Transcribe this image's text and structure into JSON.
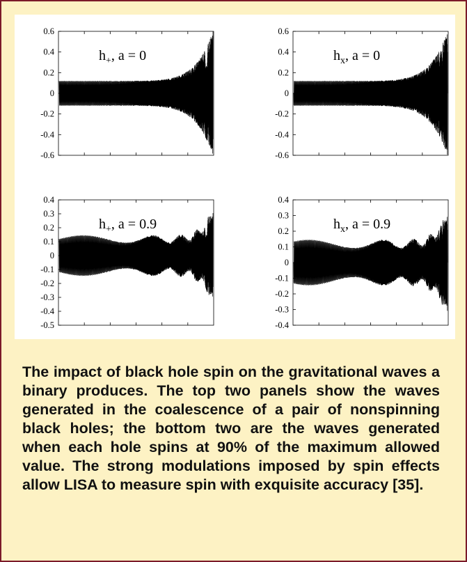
{
  "caption": "The impact of black hole spin on the gravita­tional waves a binary produces.  The top two panels show the waves generated in the coa­lescence of a pair of nonspinning black holes; the bottom two are the waves generated when each hole spins at 90% of the maximum allowed value.  The strong modulations imposed by spin effects allow LISA to measure spin with exqui­site accuracy [35].",
  "colors": {
    "frame_border": "#7b1a2a",
    "background": "#fdf2c4",
    "waveform": "#000000"
  },
  "chart_data": [
    {
      "type": "line",
      "label_main": "h",
      "label_sub": "+",
      "label_tail": ", a = 0",
      "ylim": [
        -0.6,
        0.6
      ],
      "yticks": [
        "0.6",
        "0.4",
        "0.2",
        "0",
        "-0.2",
        "-0.4",
        "-0.6"
      ],
      "envelope": {
        "start_amplitude": 0.12,
        "end_amplitude": 0.6,
        "spin_modulation": 0
      }
    },
    {
      "type": "line",
      "label_main": "h",
      "label_sub": "x",
      "label_tail": ", a = 0",
      "ylim": [
        -0.6,
        0.6
      ],
      "yticks": [
        "0.6",
        "0.4",
        "0.2",
        "0",
        "-0.2",
        "-0.4",
        "-0.6"
      ],
      "envelope": {
        "start_amplitude": 0.12,
        "end_amplitude": 0.6,
        "spin_modulation": 0
      }
    },
    {
      "type": "line",
      "label_main": "h",
      "label_sub": "+",
      "label_tail": ", a = 0.9",
      "ylim": [
        -0.5,
        0.4
      ],
      "yticks": [
        "0.4",
        "0.3",
        "0.2",
        "0.1",
        "0",
        "-0.1",
        "-0.2",
        "-0.3",
        "-0.4",
        "-0.5"
      ],
      "envelope": {
        "start_amplitude": 0.12,
        "end_amplitude": 0.36,
        "spin_modulation": 0.9
      }
    },
    {
      "type": "line",
      "label_main": "h",
      "label_sub": "x",
      "label_tail": ", a = 0.9",
      "ylim": [
        -0.4,
        0.4
      ],
      "yticks": [
        "0.4",
        "0.3",
        "0.2",
        "0.1",
        "0",
        "-0.1",
        "-0.2",
        "-0.3",
        "-0.4"
      ],
      "envelope": {
        "start_amplitude": 0.12,
        "end_amplitude": 0.36,
        "spin_modulation": 0.9
      }
    }
  ]
}
